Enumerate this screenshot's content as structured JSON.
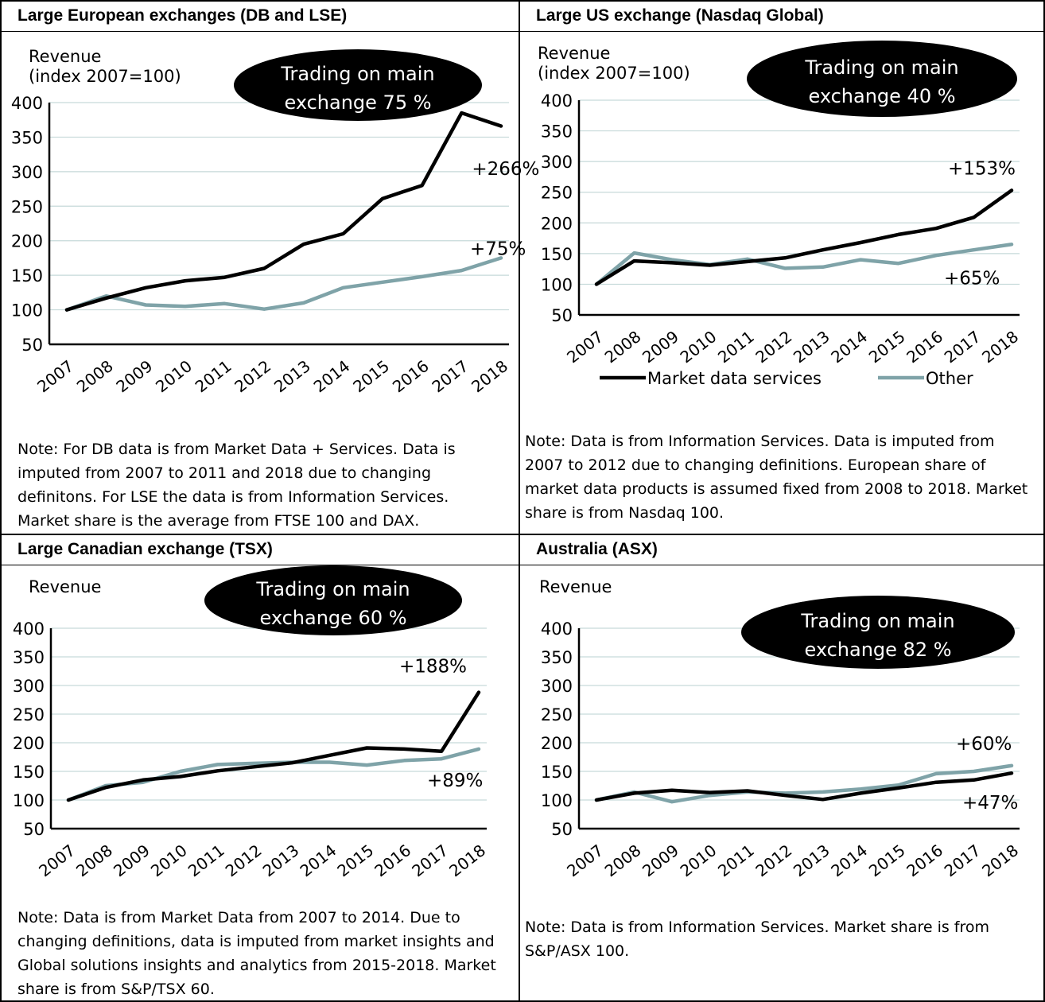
{
  "colors": {
    "market": "#000000",
    "other": "#7fa3a8",
    "grid": "#c6d9d9",
    "bubble": "#000000"
  },
  "panels": [
    {
      "title": "Large European exchanges (DB and LSE)",
      "ylabel_lines": [
        "Revenue",
        "(index 2007=100)"
      ],
      "bubble_lines": [
        "Trading on main",
        "exchange 75 %"
      ],
      "note": "Note: For DB data is from Market Data + Services. Data is imputed from 2007 to 2011 and 2018 due to changing definitons. For LSE the data is from Information Services. Market share is the average from FTSE 100 and DAX."
    },
    {
      "title": "Large US exchange (Nasdaq Global)",
      "ylabel_lines": [
        "Revenue",
        "(index 2007=100)"
      ],
      "bubble_lines": [
        "Trading on main",
        "exchange 40 %"
      ],
      "note": "Note: Data is from Information Services. Data is imputed from 2007 to 2012 due to changing definitions. European share of market data products is assumed fixed from 2008 to 2018. Market share is from Nasdaq 100."
    },
    {
      "title": "Large Canadian exchange (TSX)",
      "ylabel_lines": [
        "Revenue"
      ],
      "bubble_lines": [
        "Trading on main",
        "exchange 60 %"
      ],
      "note": "Note: Data is from Market Data from 2007 to 2014. Due to changing definitions, data is imputed from market insights and Global solutions insights and analytics from 2015-2018. Market share is from S&P/TSX 60."
    },
    {
      "title": "Australia (ASX)",
      "ylabel_lines": [
        "Revenue"
      ],
      "bubble_lines": [
        "Trading on main",
        "exchange 82 %"
      ],
      "note": "Note: Data is from Information Services. Market share is from S&P/ASX 100."
    }
  ],
  "chart_data": [
    {
      "type": "line",
      "x": [
        "2007",
        "2008",
        "2009",
        "2010",
        "2011",
        "2012",
        "2013",
        "2014",
        "2015",
        "2016",
        "2017",
        "2018"
      ],
      "ylim": [
        50,
        400
      ],
      "yticks": [
        400,
        350,
        300,
        250,
        200,
        150,
        100,
        50
      ],
      "series": [
        {
          "name": "Market data services",
          "values": [
            100,
            117,
            132,
            142,
            147,
            160,
            195,
            210,
            261,
            280,
            385,
            366
          ]
        },
        {
          "name": "Other",
          "values": [
            100,
            120,
            107,
            105,
            109,
            101,
            110,
            132,
            140,
            148,
            157,
            175
          ]
        }
      ],
      "annotations": [
        {
          "text": "+266%",
          "series": 0,
          "x": "2017"
        },
        {
          "text": "+75%",
          "series": 1,
          "x": "2018"
        }
      ],
      "legend": false,
      "grid": true
    },
    {
      "type": "line",
      "x": [
        "2007",
        "2008",
        "2009",
        "2010",
        "2011",
        "2012",
        "2013",
        "2014",
        "2015",
        "2016",
        "2017",
        "2018"
      ],
      "ylim": [
        50,
        400
      ],
      "yticks": [
        400,
        350,
        300,
        250,
        200,
        150,
        100,
        50
      ],
      "series": [
        {
          "name": "Market data services",
          "values": [
            100,
            138,
            135,
            131,
            137,
            143,
            156,
            168,
            181,
            191,
            209,
            253
          ]
        },
        {
          "name": "Other",
          "values": [
            100,
            151,
            140,
            132,
            141,
            126,
            128,
            140,
            134,
            147,
            156,
            165
          ]
        }
      ],
      "annotations": [
        {
          "text": "+153%",
          "series": 0,
          "x": "2018"
        },
        {
          "text": "+65%",
          "series": 1,
          "x": "2018"
        }
      ],
      "legend": true,
      "legend_position": "bottom",
      "grid": true
    },
    {
      "type": "line",
      "x": [
        "2007",
        "2008",
        "2009",
        "2010",
        "2011",
        "2012",
        "2013",
        "2014",
        "2015",
        "2016",
        "2017",
        "2018"
      ],
      "ylim": [
        50,
        400
      ],
      "yticks": [
        400,
        350,
        300,
        250,
        200,
        150,
        100,
        50
      ],
      "series": [
        {
          "name": "Market data services",
          "values": [
            100,
            122,
            135,
            141,
            151,
            158,
            165,
            178,
            191,
            189,
            185,
            288
          ]
        },
        {
          "name": "Other",
          "values": [
            100,
            125,
            131,
            150,
            162,
            164,
            166,
            166,
            161,
            169,
            172,
            189
          ]
        }
      ],
      "annotations": [
        {
          "text": "+188%",
          "series": 0,
          "x": "2018"
        },
        {
          "text": "+89%",
          "series": 1,
          "x": "2018"
        }
      ],
      "legend": false,
      "grid": true
    },
    {
      "type": "line",
      "x": [
        "2007",
        "2008",
        "2009",
        "2010",
        "2011",
        "2012",
        "2013",
        "2014",
        "2015",
        "2016",
        "2017",
        "2018"
      ],
      "ylim": [
        50,
        400
      ],
      "yticks": [
        400,
        350,
        300,
        250,
        200,
        150,
        100,
        50
      ],
      "series": [
        {
          "name": "Market data services",
          "values": [
            100,
            112,
            117,
            113,
            116,
            108,
            101,
            112,
            121,
            131,
            135,
            147
          ]
        },
        {
          "name": "Other",
          "values": [
            100,
            114,
            97,
            108,
            114,
            112,
            114,
            119,
            126,
            146,
            150,
            160
          ]
        }
      ],
      "annotations": [
        {
          "text": "+60%",
          "series": 1,
          "x": "2018"
        },
        {
          "text": "+47%",
          "series": 0,
          "x": "2018"
        }
      ],
      "legend": false,
      "grid": true
    }
  ]
}
